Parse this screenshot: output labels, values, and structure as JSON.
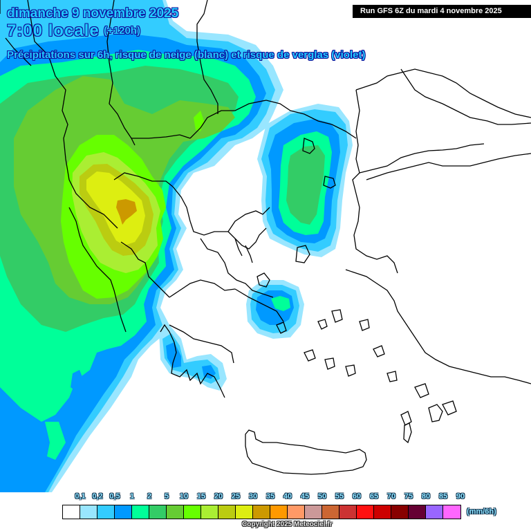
{
  "header": {
    "date": "dimanche 9 novembre 2025",
    "time": "7:00 locale",
    "lead_time": "(+120h)",
    "subtitle": "Précipitations sur 6h, risque de neige (blanc) et risque de verglas (violet)"
  },
  "run_banner": "Run GFS 6Z du mardi 4 novembre 2025",
  "legend": {
    "unit": "(mm/6h)",
    "labels": [
      "0,1",
      "0,2",
      "0,5",
      "1",
      "2",
      "5",
      "10",
      "15",
      "20",
      "25",
      "30",
      "35",
      "40",
      "45",
      "50",
      "55",
      "60",
      "65",
      "70",
      "75",
      "80",
      "85",
      "90"
    ],
    "colors": [
      "#ffffff",
      "#99e6ff",
      "#33ccff",
      "#0099ff",
      "#00ff99",
      "#33cc66",
      "#66cc33",
      "#66ff00",
      "#aaee33",
      "#bbcc11",
      "#ddee11",
      "#cc9900",
      "#ff9900",
      "#ff9966",
      "#cc9999",
      "#cc6633",
      "#cc3333",
      "#ff1111",
      "#cc0000",
      "#880000",
      "#660033",
      "#9966ff",
      "#ff66ff"
    ]
  },
  "copyright": "Copyright 2025 Meteociel.fr",
  "map": {
    "region": "Balkans / Greece / Aegean / western Turkey",
    "max_precip_area": "northern Greece / Albania border, 30-35 mm/6h"
  }
}
